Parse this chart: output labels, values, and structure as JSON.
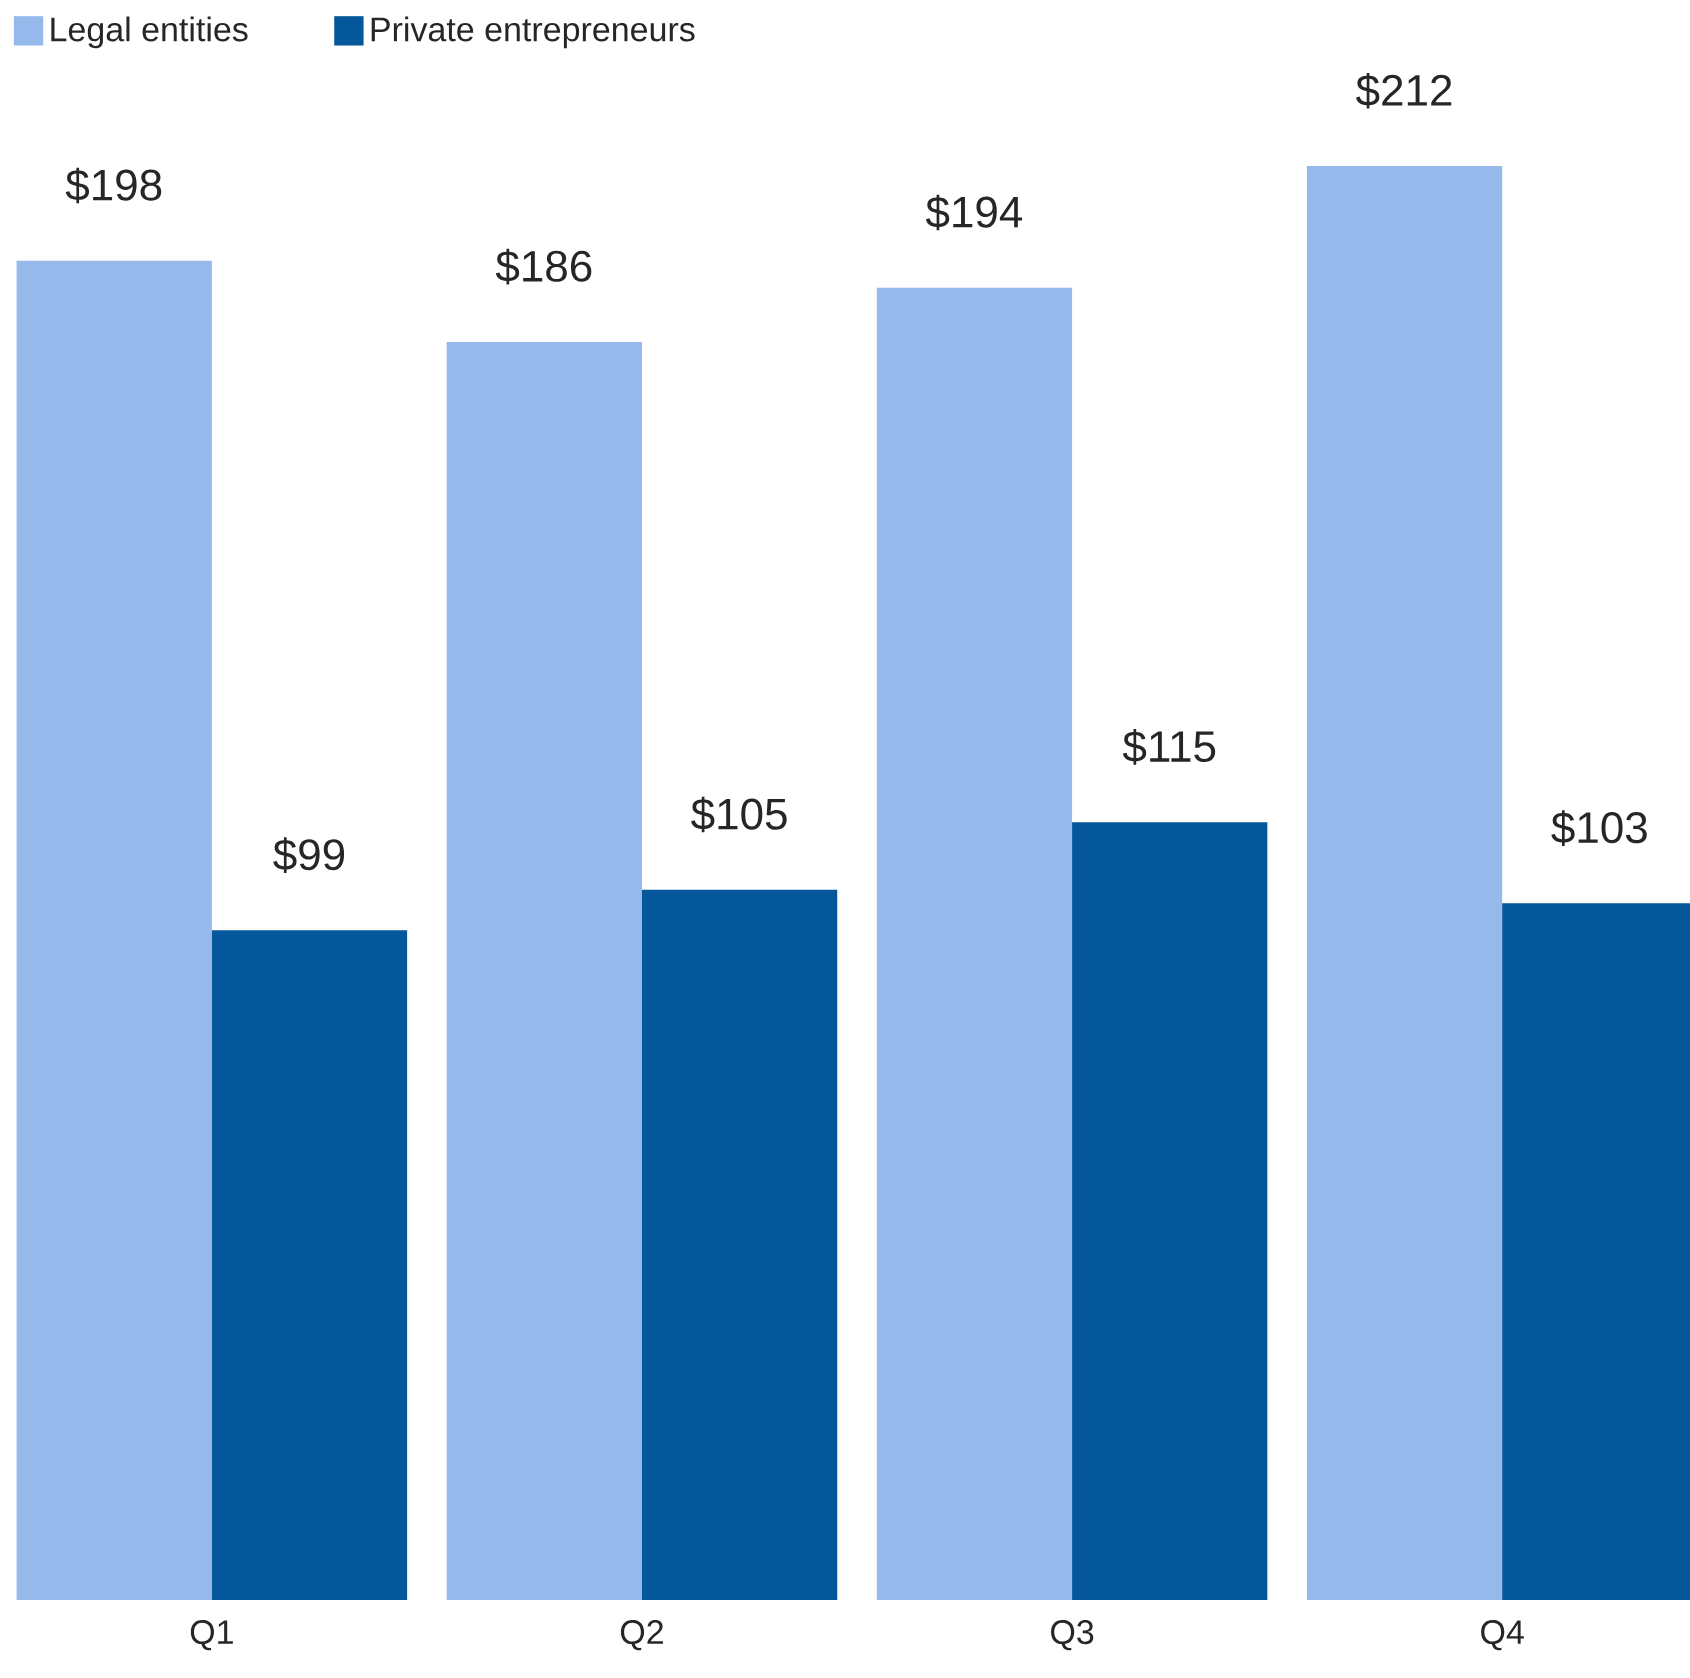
{
  "chart_data": {
    "type": "bar",
    "categories": [
      "Q1",
      "Q2",
      "Q3",
      "Q4"
    ],
    "series": [
      {
        "name": "Legal entities",
        "color": "#96b9eb",
        "values": [
          198,
          186,
          194,
          212
        ],
        "value_labels": [
          "$198",
          "$186",
          "$194",
          "$212"
        ]
      },
      {
        "name": "Private entrepreneurs",
        "color": "#03579a",
        "values": [
          99,
          105,
          115,
          103
        ],
        "value_labels": [
          "$99",
          "$105",
          "$115",
          "$103"
        ]
      }
    ],
    "legend": "top left"
  }
}
